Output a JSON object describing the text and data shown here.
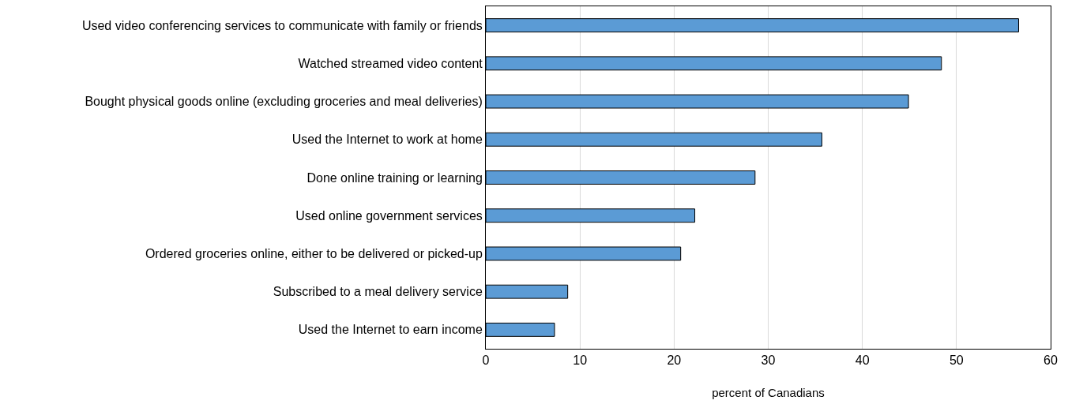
{
  "chart_data": {
    "type": "bar",
    "orientation": "horizontal",
    "xlabel": "percent of Canadians",
    "categories": [
      "Used video conferencing services to communicate with family or friends",
      "Watched streamed video content",
      "Bought physical goods online (excluding groceries and meal deliveries)",
      "Used the Internet to work at home",
      "Done online training or learning",
      "Used online government services",
      "Ordered groceries online, either to be delivered or picked-up",
      "Subscribed to a meal delivery service",
      "Used the Internet to earn income"
    ],
    "values": [
      56.6,
      48.4,
      44.9,
      35.7,
      28.6,
      22.2,
      20.7,
      8.7,
      7.3
    ],
    "color": "#5b9bd5",
    "xlim": [
      0,
      60
    ],
    "xticks": [
      0,
      10,
      20,
      30,
      40,
      50,
      60
    ],
    "grid": "x"
  }
}
